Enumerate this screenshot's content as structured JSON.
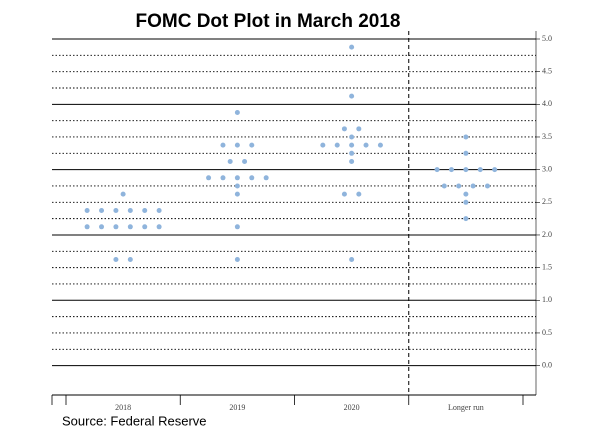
{
  "chart_data": {
    "type": "dot",
    "title": "FOMC Dot Plot in March 2018",
    "source": "Source: Federal Reserve",
    "categories": [
      "2018",
      "2019",
      "2020",
      "Longer run"
    ],
    "dots": [
      [
        {
          "y": 2.625,
          "n": 1
        },
        {
          "y": 2.375,
          "n": 6
        },
        {
          "y": 2.125,
          "n": 6
        },
        {
          "y": 1.625,
          "n": 2
        }
      ],
      [
        {
          "y": 3.875,
          "n": 1
        },
        {
          "y": 3.375,
          "n": 3
        },
        {
          "y": 3.125,
          "n": 2
        },
        {
          "y": 2.875,
          "n": 5
        },
        {
          "y": 2.75,
          "n": 1
        },
        {
          "y": 2.625,
          "n": 1
        },
        {
          "y": 2.125,
          "n": 1
        },
        {
          "y": 1.625,
          "n": 1
        }
      ],
      [
        {
          "y": 4.875,
          "n": 1
        },
        {
          "y": 4.125,
          "n": 1
        },
        {
          "y": 3.625,
          "n": 2
        },
        {
          "y": 3.5,
          "n": 1
        },
        {
          "y": 3.375,
          "n": 5
        },
        {
          "y": 3.25,
          "n": 1
        },
        {
          "y": 3.125,
          "n": 1
        },
        {
          "y": 2.625,
          "n": 2
        },
        {
          "y": 1.625,
          "n": 1
        }
      ],
      [
        {
          "y": 3.5,
          "n": 1
        },
        {
          "y": 3.25,
          "n": 1
        },
        {
          "y": 3.0,
          "n": 5
        },
        {
          "y": 2.75,
          "n": 4
        },
        {
          "y": 2.625,
          "n": 1
        },
        {
          "y": 2.5,
          "n": 1
        },
        {
          "y": 2.25,
          "n": 1
        }
      ]
    ],
    "color": "#8fb4dc",
    "ylim": [
      -0.45,
      5.0
    ],
    "yticks": [
      {
        "value": 0,
        "label": "0.0"
      },
      {
        "value": 0.5,
        "label": "0.5"
      },
      {
        "value": 1,
        "label": "1.0"
      },
      {
        "value": 1.5,
        "label": "1.5"
      },
      {
        "value": 2,
        "label": "2.0"
      },
      {
        "value": 2.5,
        "label": "2.5"
      },
      {
        "value": 3,
        "label": "3.0"
      },
      {
        "value": 3.5,
        "label": "3.5"
      },
      {
        "value": 4,
        "label": "4.0"
      },
      {
        "value": 4.5,
        "label": "4.5"
      },
      {
        "value": 5,
        "label": "5.0"
      }
    ],
    "minor_yticks": [
      0.25,
      0.75,
      1.25,
      1.75,
      2.25,
      2.75,
      3.25,
      3.75,
      4.25,
      4.75
    ],
    "grid": true
  }
}
